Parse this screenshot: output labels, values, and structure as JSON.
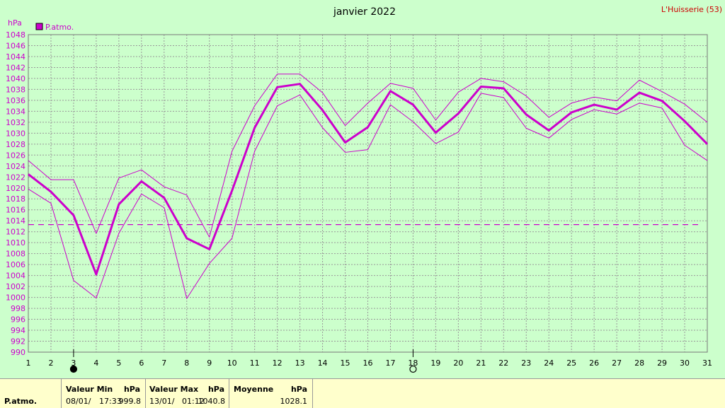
{
  "header": {
    "title": "janvier 2022",
    "station": "L'Huisserie (53)",
    "unit": "hPa"
  },
  "legend": {
    "label": "P.atmo.",
    "color": "#cc00cc"
  },
  "chart_data": {
    "type": "line",
    "title": "janvier 2022",
    "ylabel": "hPa",
    "ylim": [
      990,
      1048
    ],
    "grid": true,
    "x": [
      1,
      2,
      3,
      4,
      5,
      6,
      7,
      8,
      9,
      10,
      11,
      12,
      13,
      14,
      15,
      16,
      17,
      18,
      19,
      20,
      21,
      22,
      23,
      24,
      25,
      26,
      27,
      28,
      29,
      30,
      31
    ],
    "y_ticks": [
      990,
      992,
      994,
      996,
      998,
      1000,
      1002,
      1004,
      1006,
      1008,
      1010,
      1012,
      1014,
      1016,
      1018,
      1020,
      1022,
      1024,
      1026,
      1028,
      1030,
      1032,
      1034,
      1036,
      1038,
      1040,
      1042,
      1044,
      1046,
      1048
    ],
    "series": [
      {
        "name": "P.atmo.",
        "role": "mean",
        "values": [
          1022.5,
          1019.3,
          1015.0,
          1004.2,
          1017.0,
          1021.2,
          1018.2,
          1010.8,
          1008.8,
          1019.5,
          1031.0,
          1038.4,
          1039.0,
          1034.2,
          1028.3,
          1031.1,
          1037.7,
          1035.2,
          1030.1,
          1033.6,
          1038.5,
          1038.2,
          1033.4,
          1030.5,
          1033.8,
          1035.2,
          1034.3,
          1037.4,
          1035.9,
          1032.2,
          1028.0
        ]
      },
      {
        "role": "max",
        "values": [
          1025.0,
          1021.5,
          1021.5,
          1011.7,
          1021.8,
          1023.3,
          1020.2,
          1018.7,
          1011.0,
          1026.7,
          1035.0,
          1040.8,
          1040.8,
          1037.4,
          1031.4,
          1035.5,
          1039.1,
          1038.2,
          1032.4,
          1037.5,
          1040.0,
          1039.4,
          1036.8,
          1032.9,
          1035.5,
          1036.6,
          1035.9,
          1039.7,
          1037.6,
          1035.3,
          1032.0
        ]
      },
      {
        "role": "min",
        "values": [
          1019.8,
          1017.2,
          1003.1,
          999.9,
          1011.7,
          1018.9,
          1016.4,
          999.8,
          1006.2,
          1010.8,
          1026.7,
          1035.0,
          1037.0,
          1031.0,
          1026.5,
          1027.0,
          1035.2,
          1032.1,
          1028.1,
          1030.2,
          1037.3,
          1036.5,
          1030.9,
          1029.1,
          1032.5,
          1034.3,
          1033.5,
          1035.5,
          1034.6,
          1027.8,
          1025.0
        ]
      }
    ],
    "average_line": 1013.3,
    "markers": [
      {
        "day": 3,
        "symbol": "filled-circle"
      },
      {
        "day": 18,
        "symbol": "open-circle"
      }
    ]
  },
  "stats": {
    "row_label": "P.atmo.",
    "min": {
      "header": "Valeur Min",
      "unit": "hPa",
      "date": "08/01/",
      "time": "17:33",
      "value": "999.8"
    },
    "max": {
      "header": "Valeur Max",
      "unit": "hPa",
      "date": "13/01/",
      "time": "01:12",
      "value": "1040.8"
    },
    "mean": {
      "header": "Moyenne",
      "unit": "hPa",
      "value": "1028.1"
    }
  }
}
